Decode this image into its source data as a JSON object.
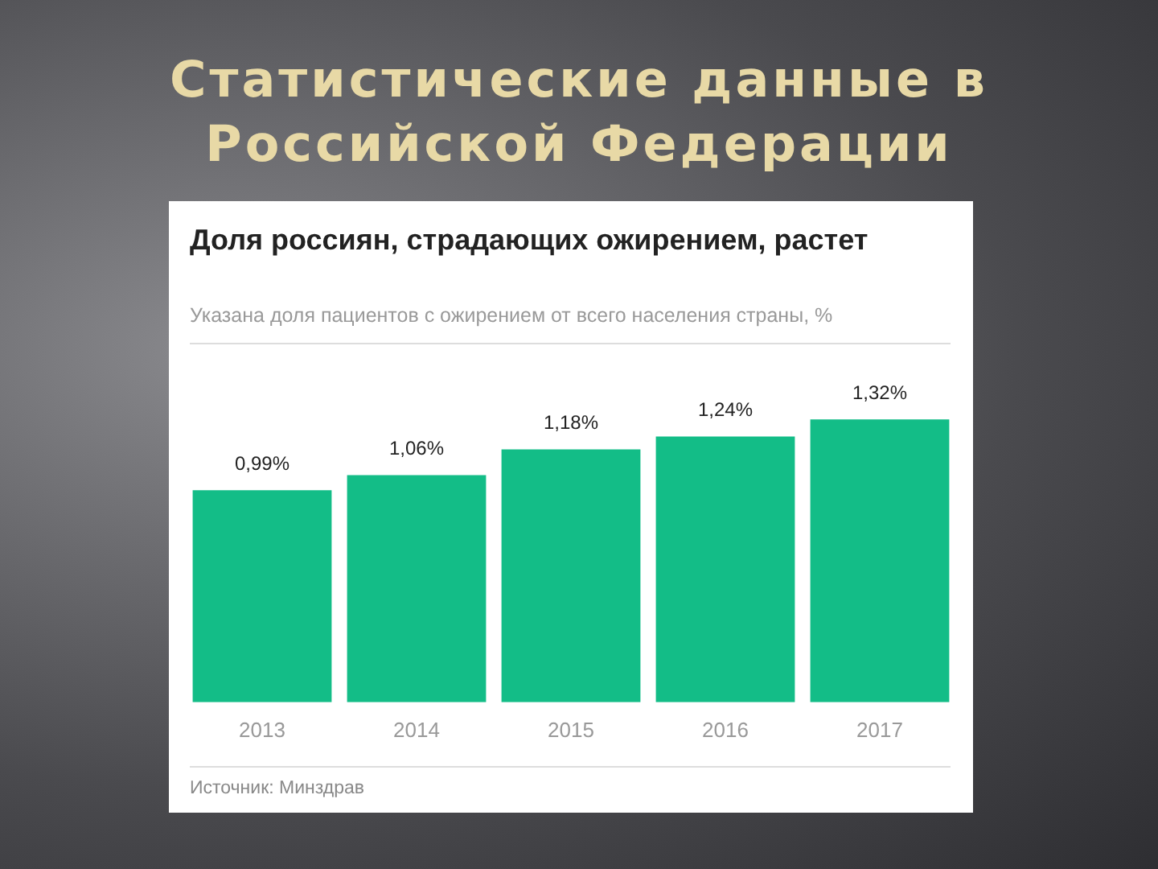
{
  "chart_data": {
    "type": "bar",
    "title": "Статистические данные в Российской Федерации",
    "subtitle": "Доля россиян, страдающих ожирением, растет",
    "annotations": [
      "Указана доля пациентов с ожирением от всего населения страны, %",
      "Источник: Минздрав"
    ],
    "categories": [
      "2013",
      "2014",
      "2015",
      "2016",
      "2017"
    ],
    "values": [
      0.99,
      1.06,
      1.18,
      1.24,
      1.32
    ],
    "value_labels": [
      "0,99%",
      "1,06%",
      "1,18%",
      "1,24%",
      "1,32%"
    ],
    "color": "#13bd87",
    "grid": false,
    "legend": false
  }
}
